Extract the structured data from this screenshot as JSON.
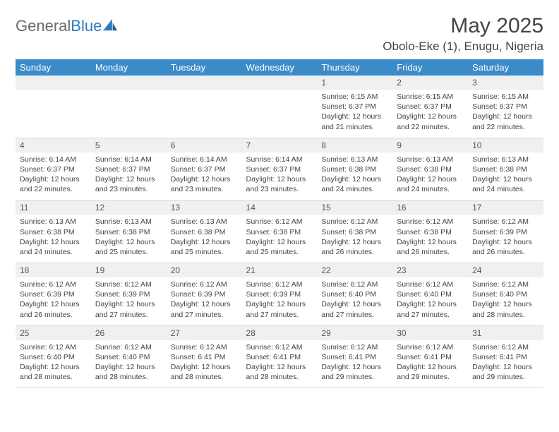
{
  "logo": {
    "text_gray": "General",
    "text_blue": "Blue"
  },
  "title": "May 2025",
  "location": "Obolo-Eke (1), Enugu, Nigeria",
  "colors": {
    "header_bg": "#3b8bc9",
    "header_fg": "#ffffff",
    "daynum_bg": "#eef0f1",
    "border": "#d9d9d9",
    "text": "#444444",
    "logo_gray": "#6b6b6b",
    "logo_blue": "#2b7bbf",
    "background": "#ffffff"
  },
  "weekdays": [
    "Sunday",
    "Monday",
    "Tuesday",
    "Wednesday",
    "Thursday",
    "Friday",
    "Saturday"
  ],
  "weeks": [
    [
      null,
      null,
      null,
      null,
      {
        "d": "1",
        "sr": "6:15 AM",
        "ss": "6:37 PM",
        "dl": "12 hours and 21 minutes."
      },
      {
        "d": "2",
        "sr": "6:15 AM",
        "ss": "6:37 PM",
        "dl": "12 hours and 22 minutes."
      },
      {
        "d": "3",
        "sr": "6:15 AM",
        "ss": "6:37 PM",
        "dl": "12 hours and 22 minutes."
      }
    ],
    [
      {
        "d": "4",
        "sr": "6:14 AM",
        "ss": "6:37 PM",
        "dl": "12 hours and 22 minutes."
      },
      {
        "d": "5",
        "sr": "6:14 AM",
        "ss": "6:37 PM",
        "dl": "12 hours and 23 minutes."
      },
      {
        "d": "6",
        "sr": "6:14 AM",
        "ss": "6:37 PM",
        "dl": "12 hours and 23 minutes."
      },
      {
        "d": "7",
        "sr": "6:14 AM",
        "ss": "6:37 PM",
        "dl": "12 hours and 23 minutes."
      },
      {
        "d": "8",
        "sr": "6:13 AM",
        "ss": "6:38 PM",
        "dl": "12 hours and 24 minutes."
      },
      {
        "d": "9",
        "sr": "6:13 AM",
        "ss": "6:38 PM",
        "dl": "12 hours and 24 minutes."
      },
      {
        "d": "10",
        "sr": "6:13 AM",
        "ss": "6:38 PM",
        "dl": "12 hours and 24 minutes."
      }
    ],
    [
      {
        "d": "11",
        "sr": "6:13 AM",
        "ss": "6:38 PM",
        "dl": "12 hours and 24 minutes."
      },
      {
        "d": "12",
        "sr": "6:13 AM",
        "ss": "6:38 PM",
        "dl": "12 hours and 25 minutes."
      },
      {
        "d": "13",
        "sr": "6:13 AM",
        "ss": "6:38 PM",
        "dl": "12 hours and 25 minutes."
      },
      {
        "d": "14",
        "sr": "6:12 AM",
        "ss": "6:38 PM",
        "dl": "12 hours and 25 minutes."
      },
      {
        "d": "15",
        "sr": "6:12 AM",
        "ss": "6:38 PM",
        "dl": "12 hours and 26 minutes."
      },
      {
        "d": "16",
        "sr": "6:12 AM",
        "ss": "6:38 PM",
        "dl": "12 hours and 26 minutes."
      },
      {
        "d": "17",
        "sr": "6:12 AM",
        "ss": "6:39 PM",
        "dl": "12 hours and 26 minutes."
      }
    ],
    [
      {
        "d": "18",
        "sr": "6:12 AM",
        "ss": "6:39 PM",
        "dl": "12 hours and 26 minutes."
      },
      {
        "d": "19",
        "sr": "6:12 AM",
        "ss": "6:39 PM",
        "dl": "12 hours and 27 minutes."
      },
      {
        "d": "20",
        "sr": "6:12 AM",
        "ss": "6:39 PM",
        "dl": "12 hours and 27 minutes."
      },
      {
        "d": "21",
        "sr": "6:12 AM",
        "ss": "6:39 PM",
        "dl": "12 hours and 27 minutes."
      },
      {
        "d": "22",
        "sr": "6:12 AM",
        "ss": "6:40 PM",
        "dl": "12 hours and 27 minutes."
      },
      {
        "d": "23",
        "sr": "6:12 AM",
        "ss": "6:40 PM",
        "dl": "12 hours and 27 minutes."
      },
      {
        "d": "24",
        "sr": "6:12 AM",
        "ss": "6:40 PM",
        "dl": "12 hours and 28 minutes."
      }
    ],
    [
      {
        "d": "25",
        "sr": "6:12 AM",
        "ss": "6:40 PM",
        "dl": "12 hours and 28 minutes."
      },
      {
        "d": "26",
        "sr": "6:12 AM",
        "ss": "6:40 PM",
        "dl": "12 hours and 28 minutes."
      },
      {
        "d": "27",
        "sr": "6:12 AM",
        "ss": "6:41 PM",
        "dl": "12 hours and 28 minutes."
      },
      {
        "d": "28",
        "sr": "6:12 AM",
        "ss": "6:41 PM",
        "dl": "12 hours and 28 minutes."
      },
      {
        "d": "29",
        "sr": "6:12 AM",
        "ss": "6:41 PM",
        "dl": "12 hours and 29 minutes."
      },
      {
        "d": "30",
        "sr": "6:12 AM",
        "ss": "6:41 PM",
        "dl": "12 hours and 29 minutes."
      },
      {
        "d": "31",
        "sr": "6:12 AM",
        "ss": "6:41 PM",
        "dl": "12 hours and 29 minutes."
      }
    ]
  ],
  "labels": {
    "sunrise": "Sunrise:",
    "sunset": "Sunset:",
    "daylight": "Daylight:"
  }
}
